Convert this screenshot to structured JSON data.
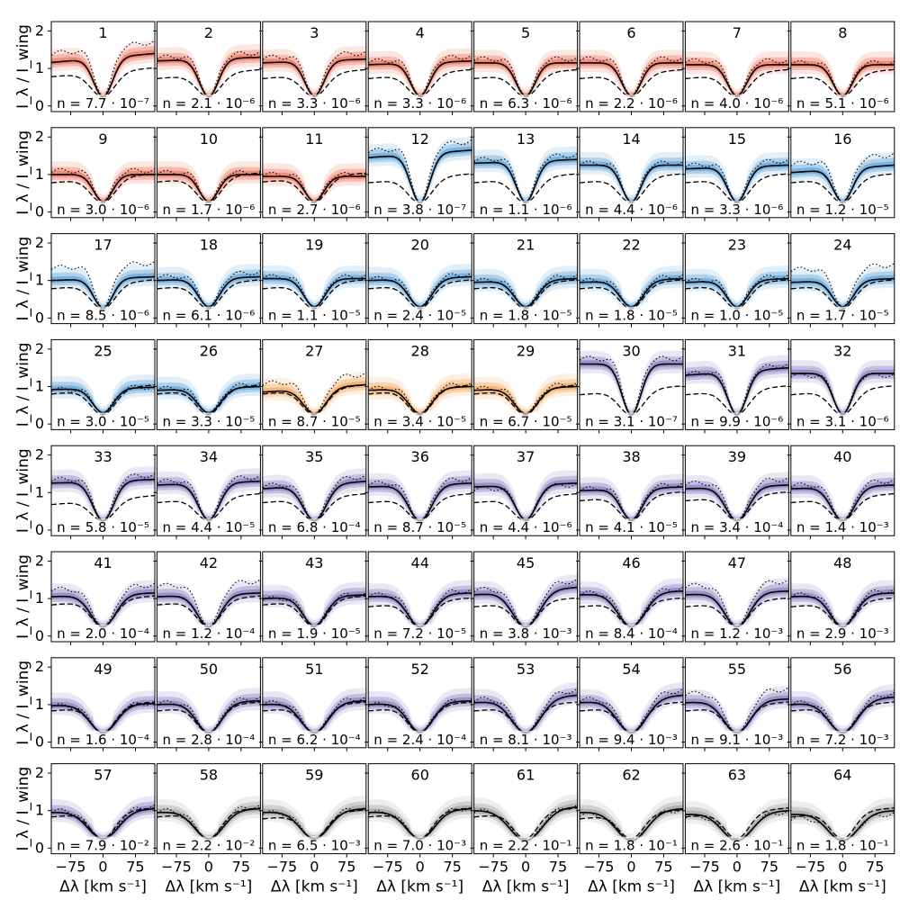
{
  "chart_data": {
    "type": "line",
    "title": "",
    "ylabel": "I_λ / I_wing",
    "xlabel": "Δλ [km s⁻¹]",
    "x_ticks": [
      -75,
      0,
      75
    ],
    "x_tick_labels": [
      "−75",
      "0",
      "75"
    ],
    "y_ticks": [
      0,
      1,
      2
    ],
    "y_tick_labels": [
      "0",
      "1",
      "2"
    ],
    "xlim": [
      -120,
      120
    ],
    "ylim": [
      -0.15,
      2.25
    ],
    "colors": {
      "red": "#e8553a",
      "blue": "#3b8fd0",
      "orange": "#f0953a",
      "purple": "#6b5fb0",
      "gray": "#8a8a8a",
      "line_solid": "#000000",
      "line_dash": "#000000"
    },
    "legend": "none",
    "panels": [
      {
        "id": "1",
        "n": "n = 7.7 · 10⁻⁷",
        "color": "red",
        "mean": 1.28,
        "core": 0.25,
        "asym": 0.12,
        "dot": 1.55,
        "dash": 0.9,
        "w": 1.0
      },
      {
        "id": "2",
        "n": "n = 2.1 · 10⁻⁶",
        "color": "red",
        "mean": 1.25,
        "core": 0.25,
        "asym": 0.05,
        "dot": 1.35,
        "dash": 0.85,
        "w": 1.0
      },
      {
        "id": "3",
        "n": "n = 3.3 · 10⁻⁶",
        "color": "red",
        "mean": 1.2,
        "core": 0.27,
        "asym": 0.05,
        "dot": 1.35,
        "dash": 0.85,
        "w": 1.0
      },
      {
        "id": "4",
        "n": "n = 3.3 · 10⁻⁶",
        "color": "red",
        "mean": 1.15,
        "core": 0.27,
        "asym": 0.05,
        "dot": 1.25,
        "dash": 0.85,
        "w": 1.0
      },
      {
        "id": "5",
        "n": "n = 6.3 · 10⁻⁶",
        "color": "red",
        "mean": 1.15,
        "core": 0.27,
        "asym": 0.0,
        "dot": 1.25,
        "dash": 0.85,
        "w": 1.0
      },
      {
        "id": "6",
        "n": "n = 2.2 · 10⁻⁶",
        "color": "red",
        "mean": 1.15,
        "core": 0.27,
        "asym": 0.0,
        "dot": 1.25,
        "dash": 0.85,
        "w": 1.0
      },
      {
        "id": "7",
        "n": "n = 4.0 · 10⁻⁶",
        "color": "red",
        "mean": 1.1,
        "core": 0.27,
        "asym": 0.0,
        "dot": 1.2,
        "dash": 0.85,
        "w": 1.0
      },
      {
        "id": "8",
        "n": "n = 5.1 · 10⁻⁶",
        "color": "red",
        "mean": 1.1,
        "core": 0.27,
        "asym": 0.0,
        "dot": 1.15,
        "dash": 0.85,
        "w": 1.0
      },
      {
        "id": "9",
        "n": "n = 3.0 · 10⁻⁶",
        "color": "red",
        "mean": 1.0,
        "core": 0.28,
        "asym": 0.0,
        "dot": 1.1,
        "dash": 0.9,
        "w": 1.0
      },
      {
        "id": "10",
        "n": "n = 1.7 · 10⁻⁶",
        "color": "red",
        "mean": 1.0,
        "core": 0.28,
        "asym": 0.0,
        "dot": 1.05,
        "dash": 0.92,
        "w": 1.0
      },
      {
        "id": "11",
        "n": "n = 2.7 · 10⁻⁶",
        "color": "red",
        "mean": 0.95,
        "core": 0.28,
        "asym": 0.0,
        "dot": 1.0,
        "dash": 0.92,
        "w": 1.0
      },
      {
        "id": "12",
        "n": "n = 3.8 · 10⁻⁷",
        "color": "blue",
        "mean": 1.55,
        "core": 0.25,
        "asym": 0.1,
        "dot": 1.75,
        "dash": 0.9,
        "w": 1.0
      },
      {
        "id": "13",
        "n": "n = 1.1 · 10⁻⁶",
        "color": "blue",
        "mean": 1.35,
        "core": 0.27,
        "asym": 0.05,
        "dot": 1.45,
        "dash": 0.9,
        "w": 1.0
      },
      {
        "id": "14",
        "n": "n = 4.4 · 10⁻⁶",
        "color": "blue",
        "mean": 1.25,
        "core": 0.27,
        "asym": 0.0,
        "dot": 1.3,
        "dash": 0.9,
        "w": 1.0
      },
      {
        "id": "15",
        "n": "n = 3.3 · 10⁻⁶",
        "color": "blue",
        "mean": 1.2,
        "core": 0.27,
        "asym": 0.05,
        "dot": 1.3,
        "dash": 0.9,
        "w": 1.0
      },
      {
        "id": "16",
        "n": "n = 1.2 · 10⁻⁵",
        "color": "blue",
        "mean": 1.15,
        "core": 0.27,
        "asym": 0.1,
        "dot": 1.4,
        "dash": 0.9,
        "w": 1.0
      },
      {
        "id": "17",
        "n": "n = 8.5 · 10⁻⁶",
        "color": "blue",
        "mean": 1.05,
        "core": 0.27,
        "asym": 0.05,
        "dot": 1.4,
        "dash": 0.9,
        "w": 1.0
      },
      {
        "id": "18",
        "n": "n = 6.1 · 10⁻⁶",
        "color": "blue",
        "mean": 1.05,
        "core": 0.3,
        "asym": 0.05,
        "dot": 1.15,
        "dash": 0.9,
        "w": 1.1
      },
      {
        "id": "19",
        "n": "n = 1.1 · 10⁻⁵",
        "color": "blue",
        "mean": 1.05,
        "core": 0.3,
        "asym": 0.0,
        "dot": 1.1,
        "dash": 0.9,
        "w": 1.1
      },
      {
        "id": "20",
        "n": "n = 2.4 · 10⁻⁵",
        "color": "blue",
        "mean": 1.05,
        "core": 0.3,
        "asym": 0.05,
        "dot": 1.1,
        "dash": 0.9,
        "w": 1.2
      },
      {
        "id": "21",
        "n": "n = 1.8 · 10⁻⁵",
        "color": "blue",
        "mean": 1.0,
        "core": 0.3,
        "asym": 0.05,
        "dot": 1.05,
        "dash": 0.9,
        "w": 1.2
      },
      {
        "id": "22",
        "n": "n = 1.8 · 10⁻⁵",
        "color": "blue",
        "mean": 1.0,
        "core": 0.3,
        "asym": 0.05,
        "dot": 1.05,
        "dash": 0.9,
        "w": 1.2
      },
      {
        "id": "23",
        "n": "n = 1.0 · 10⁻⁵",
        "color": "blue",
        "mean": 1.0,
        "core": 0.3,
        "asym": 0.05,
        "dot": 1.05,
        "dash": 0.9,
        "w": 1.1
      },
      {
        "id": "24",
        "n": "n = 1.7 · 10⁻⁵",
        "color": "blue",
        "mean": 1.0,
        "core": 0.3,
        "asym": 0.05,
        "dot": 1.35,
        "dash": 0.9,
        "w": 1.1
      },
      {
        "id": "25",
        "n": "n = 3.0 · 10⁻⁵",
        "color": "blue",
        "mean": 0.95,
        "core": 0.3,
        "asym": 0.03,
        "dot": 0.95,
        "dash": 0.92,
        "w": 1.1
      },
      {
        "id": "26",
        "n": "n = 3.3 · 10⁻⁵",
        "color": "blue",
        "mean": 0.95,
        "core": 0.3,
        "asym": 0.05,
        "dot": 1.0,
        "dash": 0.92,
        "w": 1.2
      },
      {
        "id": "27",
        "n": "n = 8.7 · 10⁻⁵",
        "color": "orange",
        "mean": 0.95,
        "core": 0.28,
        "asym": 0.1,
        "dot": 1.2,
        "dash": 0.92,
        "w": 1.2
      },
      {
        "id": "28",
        "n": "n = 3.4 · 10⁻⁵",
        "color": "orange",
        "mean": 0.95,
        "core": 0.28,
        "asym": 0.05,
        "dot": 1.0,
        "dash": 0.92,
        "w": 1.2
      },
      {
        "id": "29",
        "n": "n = 6.7 · 10⁻⁵",
        "color": "orange",
        "mean": 0.95,
        "core": 0.28,
        "asym": 0.05,
        "dot": 1.0,
        "dash": 0.92,
        "w": 1.2
      },
      {
        "id": "30",
        "n": "n = 3.1 · 10⁻⁷",
        "color": "purple",
        "mean": 1.6,
        "core": 0.25,
        "asym": 0.0,
        "dot": 1.75,
        "dash": 0.9,
        "w": 1.0
      },
      {
        "id": "31",
        "n": "n = 9.9 · 10⁻⁶",
        "color": "purple",
        "mean": 1.4,
        "core": 0.25,
        "asym": 0.1,
        "dot": 1.45,
        "dash": 0.9,
        "w": 1.0
      },
      {
        "id": "32",
        "n": "n = 3.1 · 10⁻⁶",
        "color": "purple",
        "mean": 1.35,
        "core": 0.27,
        "asym": 0.0,
        "dot": 1.3,
        "dash": 0.9,
        "w": 1.0
      },
      {
        "id": "33",
        "n": "n = 5.8 · 10⁻⁵",
        "color": "purple",
        "mean": 1.3,
        "core": 0.25,
        "asym": 0.05,
        "dot": 1.4,
        "dash": 0.8,
        "w": 1.1
      },
      {
        "id": "34",
        "n": "n = 4.4 · 10⁻⁵",
        "color": "purple",
        "mean": 1.25,
        "core": 0.27,
        "asym": 0.05,
        "dot": 1.35,
        "dash": 0.85,
        "w": 1.1
      },
      {
        "id": "35",
        "n": "n = 6.8 · 10⁻⁴",
        "color": "purple",
        "mean": 1.2,
        "core": 0.25,
        "asym": 0.1,
        "dot": 1.3,
        "dash": 0.85,
        "w": 1.2
      },
      {
        "id": "36",
        "n": "n = 8.7 · 10⁻⁵",
        "color": "purple",
        "mean": 1.2,
        "core": 0.25,
        "asym": 0.05,
        "dot": 1.3,
        "dash": 0.85,
        "w": 1.2
      },
      {
        "id": "37",
        "n": "n = 4.4 · 10⁻⁶",
        "color": "purple",
        "mean": 1.2,
        "core": 0.27,
        "asym": 0.05,
        "dot": 1.15,
        "dash": 0.85,
        "w": 1.1
      },
      {
        "id": "38",
        "n": "n = 4.1 · 10⁻⁵",
        "color": "purple",
        "mean": 1.1,
        "core": 0.27,
        "asym": 0.05,
        "dot": 1.15,
        "dash": 0.9,
        "w": 1.1
      },
      {
        "id": "39",
        "n": "n = 3.4 · 10⁻⁴",
        "color": "purple",
        "mean": 1.15,
        "core": 0.25,
        "asym": 0.05,
        "dot": 1.3,
        "dash": 0.9,
        "w": 1.2
      },
      {
        "id": "40",
        "n": "n = 1.4 · 10⁻³",
        "color": "purple",
        "mean": 1.15,
        "core": 0.25,
        "asym": 0.05,
        "dot": 1.25,
        "dash": 0.85,
        "w": 1.2
      },
      {
        "id": "41",
        "n": "n = 2.0 · 10⁻⁴",
        "color": "purple",
        "mean": 1.1,
        "core": 0.25,
        "asym": 0.05,
        "dot": 1.3,
        "dash": 0.95,
        "w": 1.3
      },
      {
        "id": "42",
        "n": "n = 1.2 · 10⁻⁴",
        "color": "purple",
        "mean": 1.1,
        "core": 0.25,
        "asym": 0.05,
        "dot": 1.4,
        "dash": 0.95,
        "w": 1.2
      },
      {
        "id": "43",
        "n": "n = 1.9 · 10⁻⁵",
        "color": "purple",
        "mean": 1.05,
        "core": 0.27,
        "asym": 0.05,
        "dot": 1.05,
        "dash": 0.95,
        "w": 1.2
      },
      {
        "id": "44",
        "n": "n = 7.2 · 10⁻⁵",
        "color": "purple",
        "mean": 1.1,
        "core": 0.25,
        "asym": 0.05,
        "dot": 1.15,
        "dash": 0.9,
        "w": 1.3
      },
      {
        "id": "45",
        "n": "n = 3.8 · 10⁻³",
        "color": "purple",
        "mean": 1.2,
        "core": 0.25,
        "asym": 0.1,
        "dot": 1.35,
        "dash": 0.9,
        "w": 1.4
      },
      {
        "id": "46",
        "n": "n = 8.4 · 10⁻⁴",
        "color": "purple",
        "mean": 1.15,
        "core": 0.25,
        "asym": 0.05,
        "dot": 1.2,
        "dash": 0.9,
        "w": 1.4
      },
      {
        "id": "47",
        "n": "n = 1.2 · 10⁻³",
        "color": "purple",
        "mean": 1.15,
        "core": 0.25,
        "asym": 0.05,
        "dot": 1.4,
        "dash": 0.9,
        "w": 1.3
      },
      {
        "id": "48",
        "n": "n = 2.9 · 10⁻³",
        "color": "purple",
        "mean": 1.1,
        "core": 0.25,
        "asym": 0.05,
        "dot": 1.15,
        "dash": 0.9,
        "w": 1.3
      },
      {
        "id": "49",
        "n": "n = 1.6 · 10⁻⁴",
        "color": "purple",
        "mean": 1.0,
        "core": 0.25,
        "asym": 0.03,
        "dot": 1.0,
        "dash": 0.95,
        "w": 1.4
      },
      {
        "id": "50",
        "n": "n = 2.8 · 10⁻⁴",
        "color": "purple",
        "mean": 1.05,
        "core": 0.25,
        "asym": 0.05,
        "dot": 1.1,
        "dash": 0.95,
        "w": 1.3
      },
      {
        "id": "51",
        "n": "n = 6.2 · 10⁻⁴",
        "color": "purple",
        "mean": 1.05,
        "core": 0.25,
        "asym": 0.05,
        "dot": 1.1,
        "dash": 0.95,
        "w": 1.4
      },
      {
        "id": "52",
        "n": "n = 2.4 · 10⁻⁴",
        "color": "purple",
        "mean": 1.05,
        "core": 0.27,
        "asym": 0.05,
        "dot": 1.05,
        "dash": 0.95,
        "w": 1.3
      },
      {
        "id": "53",
        "n": "n = 8.1 · 10⁻³",
        "color": "purple",
        "mean": 1.15,
        "core": 0.25,
        "asym": 0.1,
        "dot": 1.25,
        "dash": 0.95,
        "w": 1.5
      },
      {
        "id": "54",
        "n": "n = 9.4 · 10⁻³",
        "color": "purple",
        "mean": 1.15,
        "core": 0.25,
        "asym": 0.1,
        "dot": 1.25,
        "dash": 0.95,
        "w": 1.5
      },
      {
        "id": "55",
        "n": "n = 9.1 · 10⁻³",
        "color": "purple",
        "mean": 1.1,
        "core": 0.25,
        "asym": 0.05,
        "dot": 1.35,
        "dash": 0.95,
        "w": 1.4
      },
      {
        "id": "56",
        "n": "n = 7.2 · 10⁻³",
        "color": "purple",
        "mean": 1.1,
        "core": 0.25,
        "asym": 0.1,
        "dot": 1.15,
        "dash": 0.95,
        "w": 1.5
      },
      {
        "id": "57",
        "n": "n = 7.9 · 10⁻²",
        "color": "purple",
        "mean": 1.0,
        "core": 0.25,
        "asym": 0.05,
        "dot": 1.05,
        "dash": 0.95,
        "w": 1.6
      },
      {
        "id": "58",
        "n": "n = 2.2 · 10⁻²",
        "color": "gray",
        "mean": 1.0,
        "core": 0.25,
        "asym": 0.05,
        "dot": 1.05,
        "dash": 0.95,
        "w": 1.5
      },
      {
        "id": "59",
        "n": "n = 6.5 · 10⁻³",
        "color": "gray",
        "mean": 1.0,
        "core": 0.25,
        "asym": 0.05,
        "dot": 1.0,
        "dash": 0.9,
        "w": 1.5
      },
      {
        "id": "60",
        "n": "n = 7.0 · 10⁻³",
        "color": "gray",
        "mean": 1.0,
        "core": 0.25,
        "asym": 0.05,
        "dot": 1.0,
        "dash": 0.95,
        "w": 1.5
      },
      {
        "id": "61",
        "n": "n = 2.2 · 10⁻¹",
        "color": "gray",
        "mean": 1.05,
        "core": 0.2,
        "asym": 0.05,
        "dot": 1.05,
        "dash": 0.95,
        "w": 1.7
      },
      {
        "id": "62",
        "n": "n = 1.8 · 10⁻¹",
        "color": "gray",
        "mean": 1.0,
        "core": 0.2,
        "asym": 0.05,
        "dot": 0.95,
        "dash": 0.9,
        "w": 1.6
      },
      {
        "id": "63",
        "n": "n = 2.6 · 10⁻¹",
        "color": "gray",
        "mean": 0.95,
        "core": 0.2,
        "asym": 0.05,
        "dot": 0.9,
        "dash": 0.95,
        "w": 1.6
      },
      {
        "id": "64",
        "n": "n = 1.8 · 10⁻¹",
        "color": "gray",
        "mean": 0.95,
        "core": 0.2,
        "asym": 0.05,
        "dot": 0.85,
        "dash": 0.95,
        "w": 1.6
      }
    ]
  }
}
